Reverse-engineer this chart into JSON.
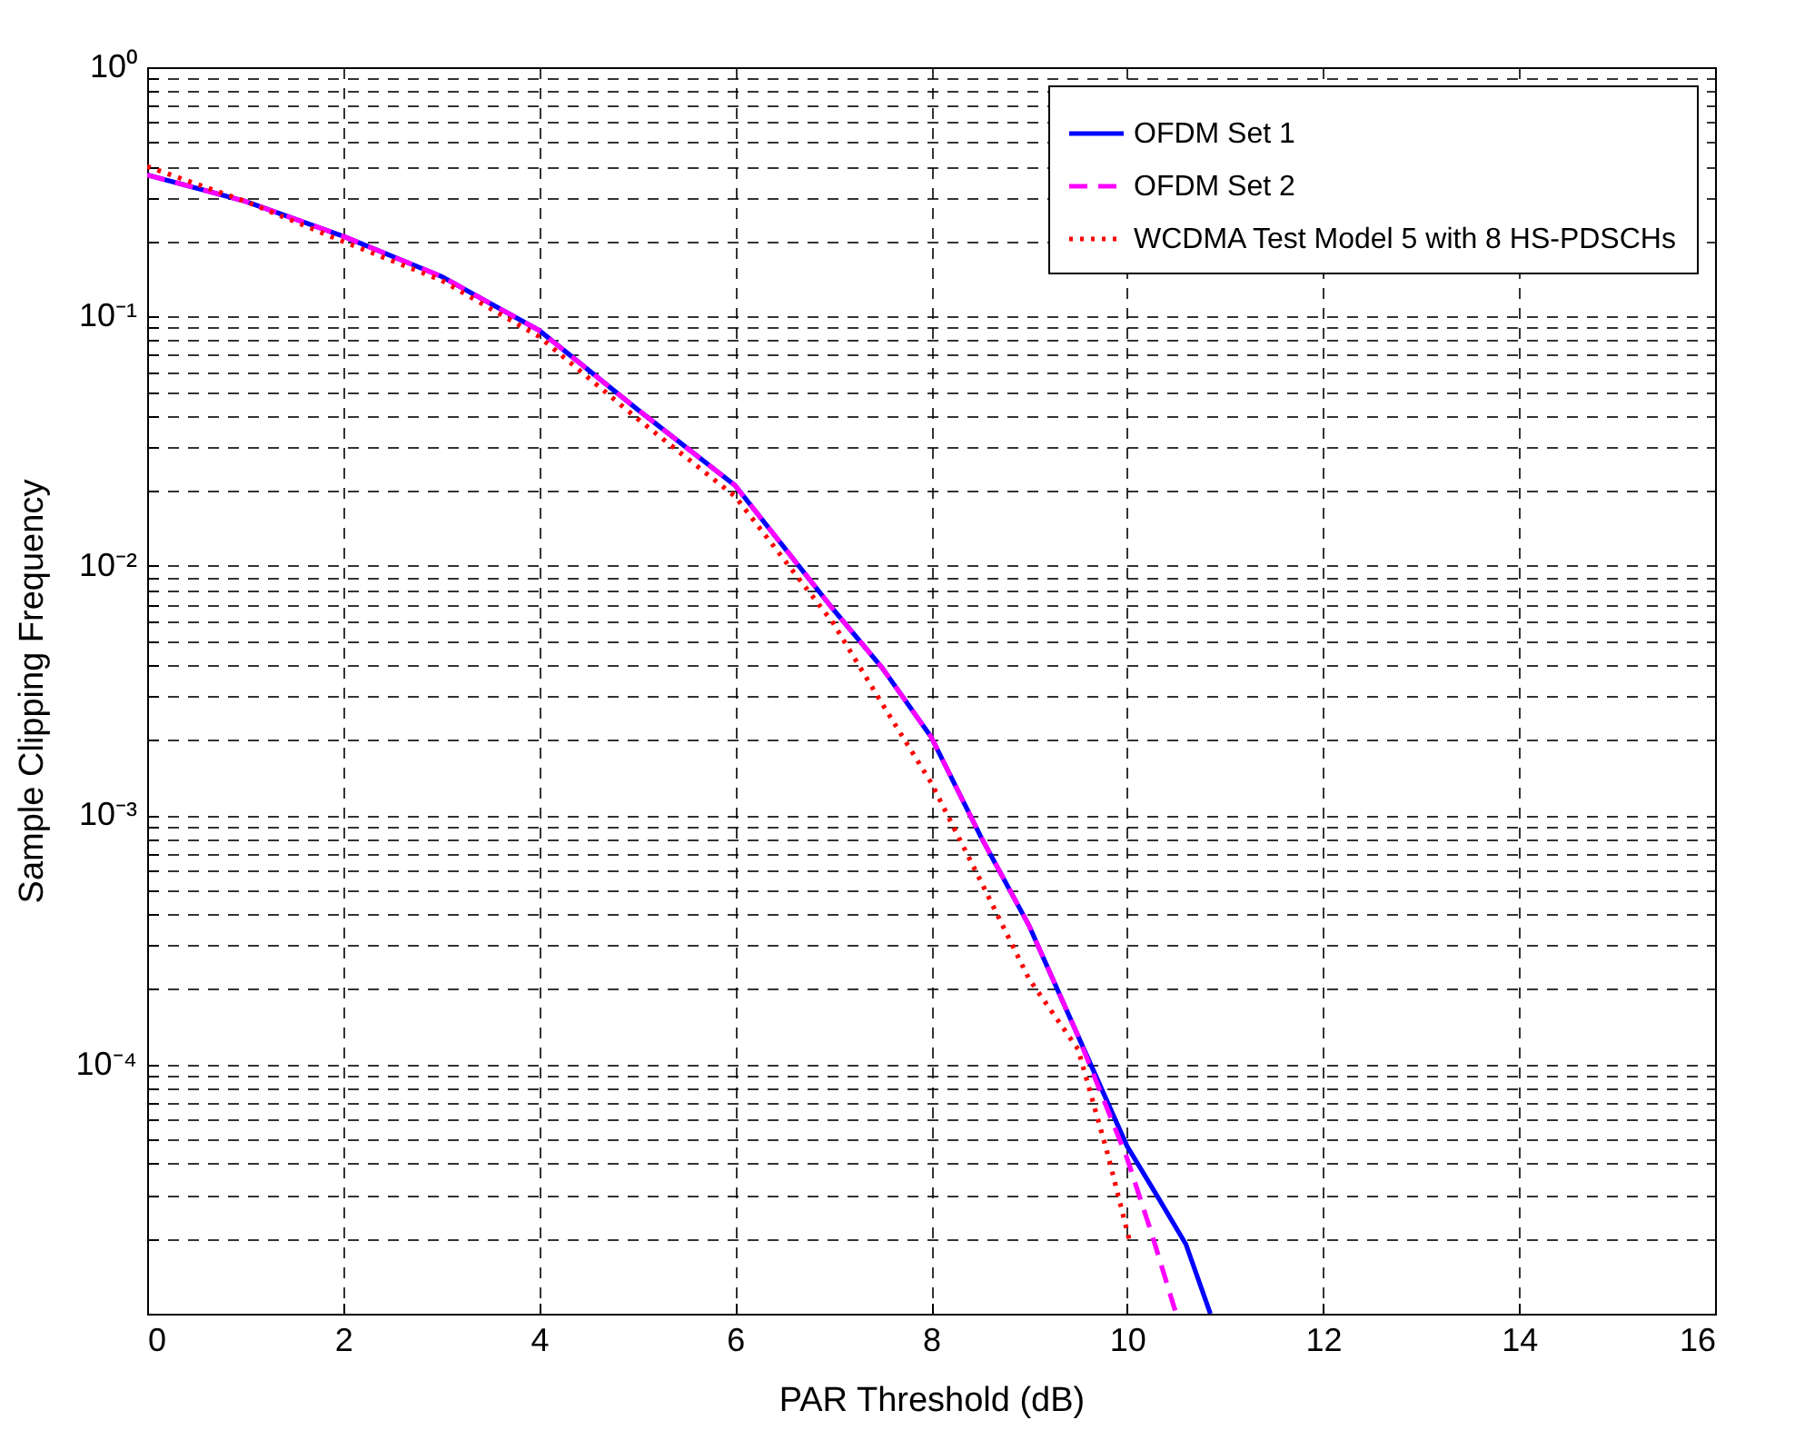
{
  "chart_data": {
    "type": "line",
    "xlabel": "PAR Threshold (dB)",
    "ylabel": "Sample Clipping Frequency",
    "log": true,
    "grid": true,
    "legend": "top right",
    "marker": "none",
    "xlim": [
      0,
      16
    ],
    "xticks": [
      0,
      2,
      4,
      6,
      8,
      10,
      12,
      14,
      16
    ],
    "ylim": [
      1e-05,
      1
    ],
    "yticks": [
      {
        "value": 1e-05,
        "label": null
      },
      {
        "value": 2e-05,
        "label": null
      },
      {
        "value": 3e-05,
        "label": null
      },
      {
        "value": 4e-05,
        "label": null
      },
      {
        "value": 5e-05,
        "label": null
      },
      {
        "value": 6e-05,
        "label": null
      },
      {
        "value": 7e-05,
        "label": null
      },
      {
        "value": 8e-05,
        "label": null
      },
      {
        "value": 9e-05,
        "label": null
      },
      {
        "value": 0.0001,
        "label": "10⁻⁴"
      },
      {
        "value": 0.0002,
        "label": null
      },
      {
        "value": 0.0003,
        "label": null
      },
      {
        "value": 0.0004,
        "label": null
      },
      {
        "value": 0.0005,
        "label": null
      },
      {
        "value": 0.0006,
        "label": null
      },
      {
        "value": 0.0007,
        "label": null
      },
      {
        "value": 0.0008,
        "label": null
      },
      {
        "value": 0.0009,
        "label": null
      },
      {
        "value": 0.001,
        "label": "10⁻³"
      },
      {
        "value": 0.002,
        "label": null
      },
      {
        "value": 0.003,
        "label": null
      },
      {
        "value": 0.004,
        "label": null
      },
      {
        "value": 0.005,
        "label": null
      },
      {
        "value": 0.006,
        "label": null
      },
      {
        "value": 0.007,
        "label": null
      },
      {
        "value": 0.008,
        "label": null
      },
      {
        "value": 0.009,
        "label": null
      },
      {
        "value": 0.01,
        "label": "10⁻²"
      },
      {
        "value": 0.02,
        "label": null
      },
      {
        "value": 0.03,
        "label": null
      },
      {
        "value": 0.04,
        "label": null
      },
      {
        "value": 0.05,
        "label": null
      },
      {
        "value": 0.06,
        "label": null
      },
      {
        "value": 0.07,
        "label": null
      },
      {
        "value": 0.08,
        "label": null
      },
      {
        "value": 0.09,
        "label": null
      },
      {
        "value": 0.1,
        "label": "10⁻¹"
      },
      {
        "value": 0.2,
        "label": null
      },
      {
        "value": 0.3,
        "label": null
      },
      {
        "value": 0.4,
        "label": null
      },
      {
        "value": 0.5,
        "label": null
      },
      {
        "value": 0.6,
        "label": null
      },
      {
        "value": 0.7,
        "label": null
      },
      {
        "value": 0.8,
        "label": null
      },
      {
        "value": 0.9,
        "label": null
      },
      {
        "value": 1,
        "label": "10⁰"
      }
    ],
    "series": [
      {
        "name": "OFDM Set 1",
        "color": "#0000ff",
        "line_style": "solid",
        "x": [
          0,
          1,
          2,
          3,
          4,
          5,
          6,
          7,
          7.5,
          8,
          8.5,
          9,
          9.5,
          10,
          10.3,
          10.6,
          10.85
        ],
        "values": [
          0.37,
          0.29,
          0.21,
          0.145,
          0.088,
          0.0425,
          0.021,
          0.0067,
          0.0039,
          0.00206,
          0.00083,
          0.00036,
          0.00013,
          4.7e-05,
          3e-05,
          1.9e-05,
          1e-05
        ]
      },
      {
        "name": "OFDM Set 2",
        "color": "#ff00ff",
        "line_style": "dashed",
        "x": [
          0,
          1,
          2,
          3,
          4,
          5,
          6,
          7,
          7.5,
          8,
          8.5,
          9,
          9.5,
          10,
          10.25,
          10.5
        ],
        "values": [
          0.37,
          0.29,
          0.21,
          0.145,
          0.088,
          0.0425,
          0.021,
          0.0067,
          0.0039,
          0.00206,
          0.00083,
          0.00036,
          0.00013,
          4.2e-05,
          2.1e-05,
          1e-05
        ]
      },
      {
        "name": "WCDMA Test Model 5 with 8 HS-PDSCHs",
        "color": "#ff0000",
        "line_style": "dotted",
        "x": [
          0,
          1,
          2,
          3,
          4,
          5,
          6,
          7,
          7.5,
          8,
          8.5,
          9,
          9.5,
          9.8,
          10.02
        ],
        "values": [
          0.4,
          0.29,
          0.2,
          0.14,
          0.083,
          0.039,
          0.019,
          0.0059,
          0.0028,
          0.00135,
          0.00055,
          0.00022,
          0.000115,
          4.4e-05,
          2e-05
        ]
      }
    ]
  }
}
